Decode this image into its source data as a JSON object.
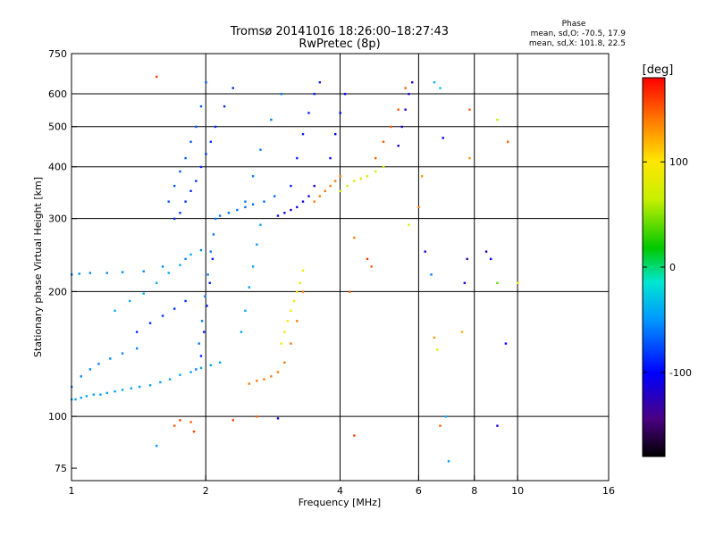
{
  "header": {
    "title": "Tromsø 20141016 18:26:00–18:27:43",
    "subtitle": "RwPretec (8p)",
    "phase_title": "Phase",
    "phase_line1": "mean, sd,O: -70.5, 17.9",
    "phase_line2": "mean, sd,X: 101.8, 22.5"
  },
  "colorbar": {
    "label": "[deg]",
    "ticks": [
      {
        "value": 100,
        "label": "100"
      },
      {
        "value": 0,
        "label": "0"
      },
      {
        "value": -100,
        "label": "-100"
      }
    ],
    "range": [
      -180,
      180
    ]
  },
  "chart_data": {
    "type": "scatter",
    "xlabel": "Frequency [MHz]",
    "ylabel": "Stationary phase Virtual Height [km]",
    "x_scale": "log",
    "y_scale": "log",
    "xlim": [
      1,
      16
    ],
    "ylim": [
      70,
      750
    ],
    "xticks": [
      {
        "value": 1,
        "label": "1"
      },
      {
        "value": 2,
        "label": "2"
      },
      {
        "value": 4,
        "label": "4"
      },
      {
        "value": 6,
        "label": "6"
      },
      {
        "value": 8,
        "label": "8"
      },
      {
        "value": 10,
        "label": "10"
      },
      {
        "value": 16,
        "label": "16"
      }
    ],
    "yticks": [
      {
        "value": 75,
        "label": "75"
      },
      {
        "value": 100,
        "label": "100"
      },
      {
        "value": 200,
        "label": "200"
      },
      {
        "value": 300,
        "label": "300"
      },
      {
        "value": 400,
        "label": "400"
      },
      {
        "value": 500,
        "label": "500"
      },
      {
        "value": 600,
        "label": "600"
      },
      {
        "value": 750,
        "label": "750"
      }
    ],
    "grid_x": [
      2,
      4,
      6,
      8,
      10
    ],
    "grid_y": [
      100,
      200,
      300,
      400,
      500,
      600
    ],
    "series": [
      {
        "x": [
          1.0,
          1.02,
          1.05,
          1.08,
          1.12,
          1.16,
          1.2,
          1.25,
          1.3,
          1.36,
          1.42,
          1.5,
          1.58,
          1.66,
          1.75,
          1.85,
          1.95,
          2.05,
          2.15
        ],
        "y": [
          110,
          110,
          111,
          112,
          113,
          113,
          114,
          115,
          116,
          117,
          118,
          119,
          121,
          123,
          126,
          128,
          131,
          133,
          135
        ],
        "phase": -45
      },
      {
        "x": [
          1.0,
          1.05,
          1.1,
          1.15,
          1.22,
          1.3,
          1.4
        ],
        "y": [
          118,
          125,
          130,
          134,
          138,
          142,
          146
        ],
        "phase": -55
      },
      {
        "x": [
          1.0,
          1.04,
          1.1,
          1.2,
          1.3,
          1.45,
          1.6,
          1.8,
          1.95
        ],
        "y": [
          220,
          221,
          222,
          222,
          223,
          224,
          230,
          240,
          252
        ],
        "phase": -55
      },
      {
        "x": [
          1.25,
          1.35,
          1.45,
          1.55,
          1.65,
          1.75,
          1.85
        ],
        "y": [
          180,
          190,
          198,
          210,
          222,
          232,
          246
        ],
        "phase": -40
      },
      {
        "x": [
          1.4,
          1.5,
          1.6,
          1.7,
          1.8
        ],
        "y": [
          160,
          168,
          175,
          182,
          190
        ],
        "phase": -85
      },
      {
        "x": [
          1.9,
          1.93,
          1.96,
          1.99,
          2.02,
          2.05,
          2.08,
          2.1
        ],
        "y": [
          130,
          150,
          170,
          195,
          220,
          250,
          275,
          300
        ],
        "phase": -60
      },
      {
        "x": [
          1.95,
          1.98,
          2.01,
          2.04,
          2.07
        ],
        "y": [
          140,
          160,
          185,
          210,
          240
        ],
        "phase": -90
      },
      {
        "x": [
          1.7,
          1.75,
          1.8,
          1.85,
          1.9,
          1.95,
          2.0,
          2.05,
          2.1,
          2.2,
          2.3
        ],
        "y": [
          300,
          310,
          330,
          350,
          370,
          400,
          430,
          460,
          500,
          560,
          620
        ],
        "phase": -85
      },
      {
        "x": [
          1.65,
          1.7,
          1.75,
          1.8,
          1.85,
          1.9,
          1.95,
          2.0
        ],
        "y": [
          330,
          360,
          390,
          420,
          460,
          500,
          560,
          640
        ],
        "phase": -70
      },
      {
        "x": [
          2.15,
          2.25,
          2.35,
          2.45,
          2.55,
          2.7,
          2.85
        ],
        "y": [
          305,
          310,
          315,
          320,
          325,
          330,
          340
        ],
        "phase": -65
      },
      {
        "x": [
          2.4,
          2.45,
          2.5,
          2.55,
          2.6,
          2.65
        ],
        "y": [
          160,
          180,
          205,
          230,
          260,
          290
        ],
        "phase": -45
      },
      {
        "x": [
          2.45,
          2.55,
          2.65,
          2.8,
          2.95
        ],
        "y": [
          330,
          380,
          440,
          520,
          600
        ],
        "phase": -60
      },
      {
        "x": [
          2.5,
          2.6,
          2.7,
          2.8,
          2.9,
          3.0,
          3.1,
          3.2,
          3.3
        ],
        "y": [
          120,
          122,
          123,
          125,
          128,
          135,
          150,
          170,
          200
        ],
        "phase": 140
      },
      {
        "x": [
          2.95,
          3.0,
          3.05,
          3.1,
          3.15,
          3.2,
          3.25,
          3.3
        ],
        "y": [
          150,
          160,
          170,
          180,
          190,
          200,
          210,
          225
        ],
        "phase": 95
      },
      {
        "x": [
          2.9,
          3.0,
          3.1,
          3.2,
          3.3,
          3.4,
          3.5
        ],
        "y": [
          305,
          310,
          315,
          320,
          330,
          340,
          360
        ],
        "phase": -110
      },
      {
        "x": [
          3.1,
          3.2,
          3.3,
          3.4,
          3.5,
          3.6
        ],
        "y": [
          360,
          420,
          480,
          540,
          600,
          640
        ],
        "phase": -90
      },
      {
        "x": [
          3.5,
          3.6,
          3.7,
          3.8,
          3.9,
          4.0
        ],
        "y": [
          330,
          340,
          350,
          360,
          370,
          380
        ],
        "phase": 140
      },
      {
        "x": [
          4.0,
          4.15,
          4.3,
          4.45,
          4.6,
          4.8,
          5.0
        ],
        "y": [
          350,
          360,
          370,
          375,
          380,
          390,
          400
        ],
        "phase": 70
      },
      {
        "x": [
          3.8,
          3.9,
          4.0,
          4.1
        ],
        "y": [
          420,
          480,
          540,
          600
        ],
        "phase": -100
      },
      {
        "x": [
          4.8,
          5.0,
          5.2,
          5.4,
          5.6
        ],
        "y": [
          420,
          460,
          500,
          550,
          620
        ],
        "phase": 150
      },
      {
        "x": [
          5.4,
          5.5,
          5.6,
          5.7,
          5.8
        ],
        "y": [
          450,
          500,
          550,
          600,
          640
        ],
        "phase": -115
      }
    ],
    "scatter_points": [
      {
        "x": 1.55,
        "y": 660,
        "phase": 160
      },
      {
        "x": 1.55,
        "y": 85,
        "phase": -50
      },
      {
        "x": 1.7,
        "y": 95,
        "phase": 150
      },
      {
        "x": 1.75,
        "y": 98,
        "phase": 160
      },
      {
        "x": 1.85,
        "y": 97,
        "phase": 150
      },
      {
        "x": 1.88,
        "y": 92,
        "phase": 160
      },
      {
        "x": 2.3,
        "y": 98,
        "phase": 160
      },
      {
        "x": 2.6,
        "y": 100,
        "phase": 150
      },
      {
        "x": 2.9,
        "y": 99,
        "phase": -110
      },
      {
        "x": 4.3,
        "y": 90,
        "phase": 160
      },
      {
        "x": 4.3,
        "y": 270,
        "phase": 140
      },
      {
        "x": 4.2,
        "y": 200,
        "phase": 150
      },
      {
        "x": 4.6,
        "y": 240,
        "phase": 160
      },
      {
        "x": 4.7,
        "y": 230,
        "phase": 150
      },
      {
        "x": 5.7,
        "y": 290,
        "phase": 80
      },
      {
        "x": 6.2,
        "y": 250,
        "phase": -110
      },
      {
        "x": 6.4,
        "y": 220,
        "phase": -60
      },
      {
        "x": 6.5,
        "y": 640,
        "phase": -40
      },
      {
        "x": 6.7,
        "y": 620,
        "phase": -30
      },
      {
        "x": 6.8,
        "y": 470,
        "phase": -100
      },
      {
        "x": 6.9,
        "y": 100,
        "phase": -40
      },
      {
        "x": 6.7,
        "y": 95,
        "phase": 150
      },
      {
        "x": 7.0,
        "y": 78,
        "phase": -50
      },
      {
        "x": 6.5,
        "y": 155,
        "phase": 130
      },
      {
        "x": 6.6,
        "y": 145,
        "phase": 80
      },
      {
        "x": 7.5,
        "y": 160,
        "phase": 120
      },
      {
        "x": 7.6,
        "y": 210,
        "phase": -110
      },
      {
        "x": 7.7,
        "y": 240,
        "phase": -130
      },
      {
        "x": 7.8,
        "y": 420,
        "phase": 130
      },
      {
        "x": 7.8,
        "y": 550,
        "phase": 150
      },
      {
        "x": 8.5,
        "y": 250,
        "phase": -130
      },
      {
        "x": 8.7,
        "y": 240,
        "phase": -100
      },
      {
        "x": 9.0,
        "y": 210,
        "phase": 40
      },
      {
        "x": 9.0,
        "y": 520,
        "phase": 60
      },
      {
        "x": 9.0,
        "y": 95,
        "phase": -110
      },
      {
        "x": 9.4,
        "y": 150,
        "phase": -100
      },
      {
        "x": 9.5,
        "y": 460,
        "phase": 150
      },
      {
        "x": 10.0,
        "y": 210,
        "phase": 90
      },
      {
        "x": 6.0,
        "y": 320,
        "phase": 140
      },
      {
        "x": 6.1,
        "y": 380,
        "phase": 130
      }
    ]
  }
}
